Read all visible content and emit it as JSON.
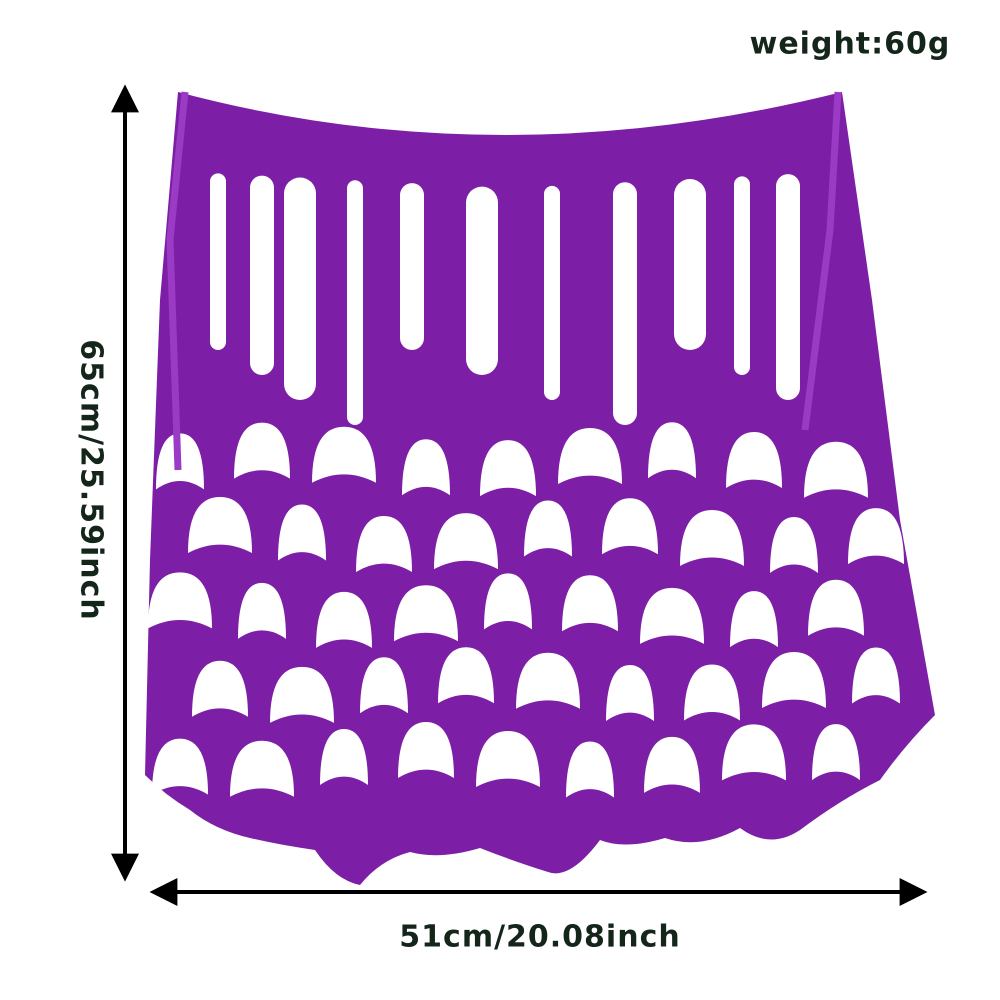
{
  "labels": {
    "weight": "weight:60g",
    "height": "65cm/25.59inch",
    "width": "51cm/20.08inch"
  }
}
